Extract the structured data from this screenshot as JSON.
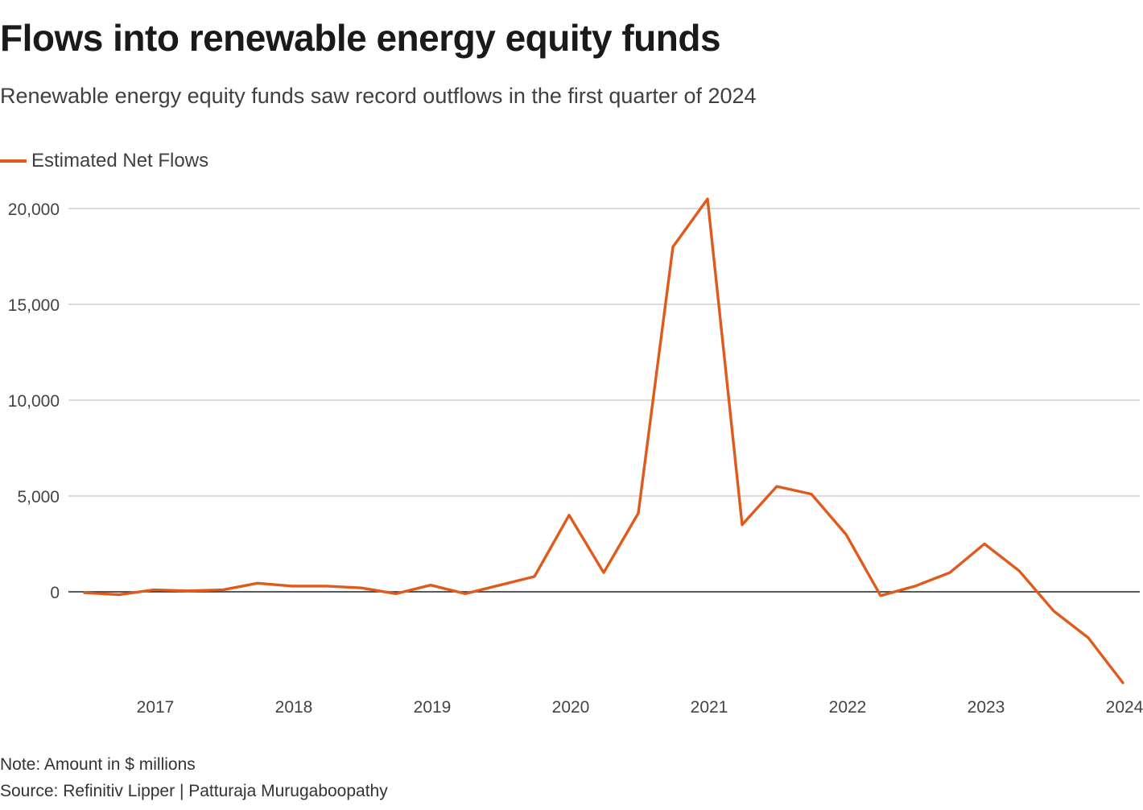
{
  "title": "Flows into renewable energy equity funds",
  "subtitle": "Renewable energy equity funds saw record outflows in the first quarter of 2024",
  "note": "Note: Amount in $ millions",
  "source": "Source: Refinitiv Lipper | Patturaja Murugaboopathy",
  "colors": {
    "series": "#e05a1c",
    "grid": "#c8c8c8",
    "zero_line": "#222222"
  },
  "chart_data": {
    "type": "line",
    "title": "Flows into renewable energy equity funds",
    "subtitle": "Renewable energy equity funds saw record outflows in the first quarter of 2024",
    "xlabel": "",
    "ylabel": "",
    "legend": "top-left",
    "grid": true,
    "ylim": [
      -5000,
      20000
    ],
    "yticks": [
      0,
      5000,
      10000,
      15000,
      20000
    ],
    "ytick_labels": [
      "0",
      "5,000",
      "10,000",
      "15,000",
      "20,000"
    ],
    "xticks": [
      "2017",
      "2018",
      "2019",
      "2020",
      "2021",
      "2022",
      "2023",
      "2024"
    ],
    "x": [
      "Q3 2016",
      "Q4 2016",
      "Q1 2017",
      "Q2 2017",
      "Q3 2017",
      "Q4 2017",
      "Q1 2018",
      "Q2 2018",
      "Q3 2018",
      "Q4 2018",
      "Q1 2019",
      "Q2 2019",
      "Q3 2019",
      "Q4 2019",
      "Q1 2020",
      "Q2 2020",
      "Q3 2020",
      "Q4 2020",
      "Q1 2021",
      "Q2 2021",
      "Q3 2021",
      "Q4 2021",
      "Q1 2022",
      "Q2 2022",
      "Q3 2022",
      "Q4 2022",
      "Q1 2023",
      "Q2 2023",
      "Q3 2023",
      "Q4 2023",
      "Q1 2024",
      "Q2 2024"
    ],
    "series": [
      {
        "name": "Estimated Net Flows",
        "values": [
          -50,
          -150,
          100,
          50,
          100,
          450,
          300,
          300,
          200,
          -100,
          350,
          -100,
          350,
          800,
          4000,
          1000,
          4100,
          18000,
          20500,
          3500,
          5500,
          5100,
          3000,
          -200,
          300,
          1000,
          2500,
          1100,
          -1000,
          -2400,
          -4750,
          null
        ]
      }
    ]
  }
}
